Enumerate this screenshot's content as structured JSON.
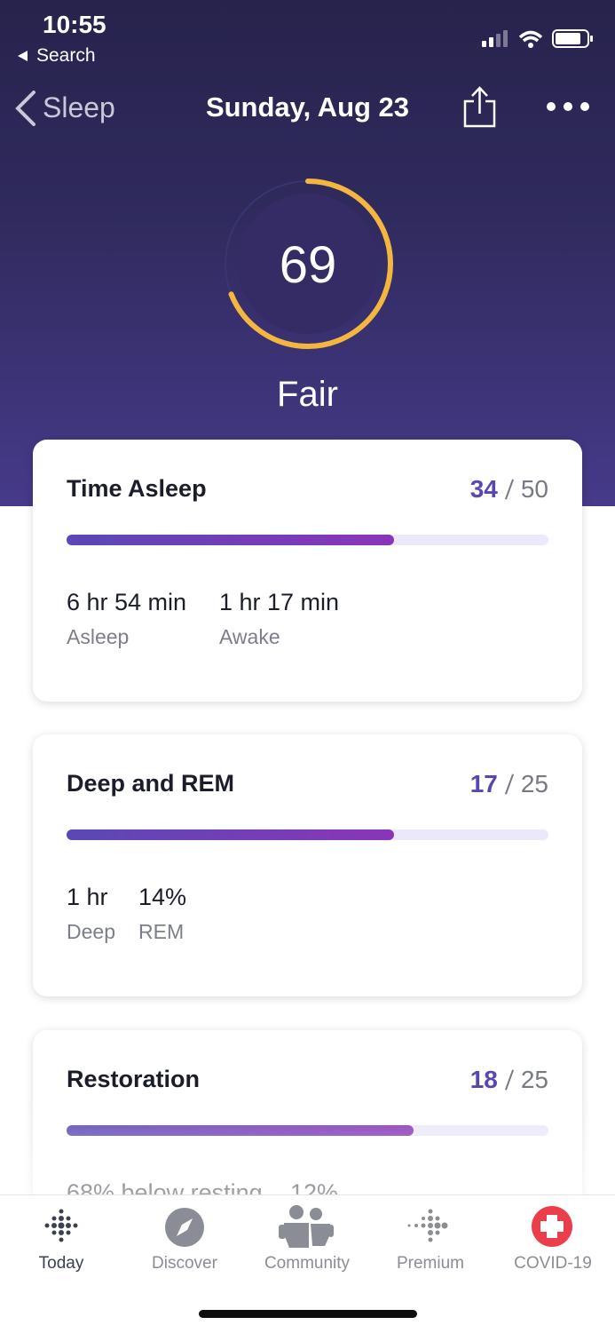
{
  "status_bar": {
    "time": "10:55",
    "back_app": "Search"
  },
  "nav": {
    "back": "Sleep",
    "title": "Sunday, Aug 23"
  },
  "score": {
    "value": 69,
    "rating": "Fair"
  },
  "cards": [
    {
      "title": "Time Asleep",
      "score": 34,
      "max": 50,
      "stats": [
        {
          "value": "6 hr 54 min",
          "label": "Asleep"
        },
        {
          "value": "1 hr 17 min",
          "label": "Awake"
        }
      ]
    },
    {
      "title": "Deep and REM",
      "score": 17,
      "max": 25,
      "stats": [
        {
          "value": "1 hr",
          "label": "Deep"
        },
        {
          "value": "14%",
          "label": "REM"
        }
      ]
    },
    {
      "title": "Restoration",
      "score": 18,
      "max": 25,
      "stats": [
        {
          "value": "68% below resting"
        },
        {
          "value": "12%"
        }
      ]
    }
  ],
  "tab_bar": [
    "Today",
    "Discover",
    "Community",
    "Premium",
    "COVID-19"
  ]
}
